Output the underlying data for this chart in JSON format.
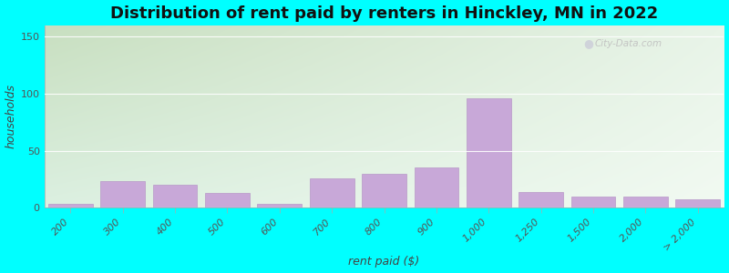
{
  "title": "Distribution of rent paid by renters in Hinckley, MN in 2022",
  "xlabel": "rent paid ($)",
  "ylabel": "households",
  "categories": [
    "200",
    "300",
    "400",
    "500",
    "600",
    "700",
    "800",
    "900",
    "1,000",
    "1,250",
    "1,500",
    "2,000",
    "> 2,000"
  ],
  "values": [
    3,
    23,
    20,
    13,
    3,
    26,
    30,
    35,
    96,
    14,
    10,
    10,
    7
  ],
  "bar_color": "#c8a8d8",
  "bar_edge_color": "#b898c8",
  "ylim": [
    0,
    160
  ],
  "yticks": [
    0,
    50,
    100,
    150
  ],
  "bg_top_left": "#c8dfc0",
  "bg_top_right": "#e8f0e0",
  "bg_bottom_left": "#d0e8d8",
  "bg_bottom_right": "#f0f8f0",
  "outer_bg": "#00ffff",
  "title_fontsize": 13,
  "axis_label_fontsize": 9,
  "tick_fontsize": 8,
  "watermark_text": "City-Data.com"
}
